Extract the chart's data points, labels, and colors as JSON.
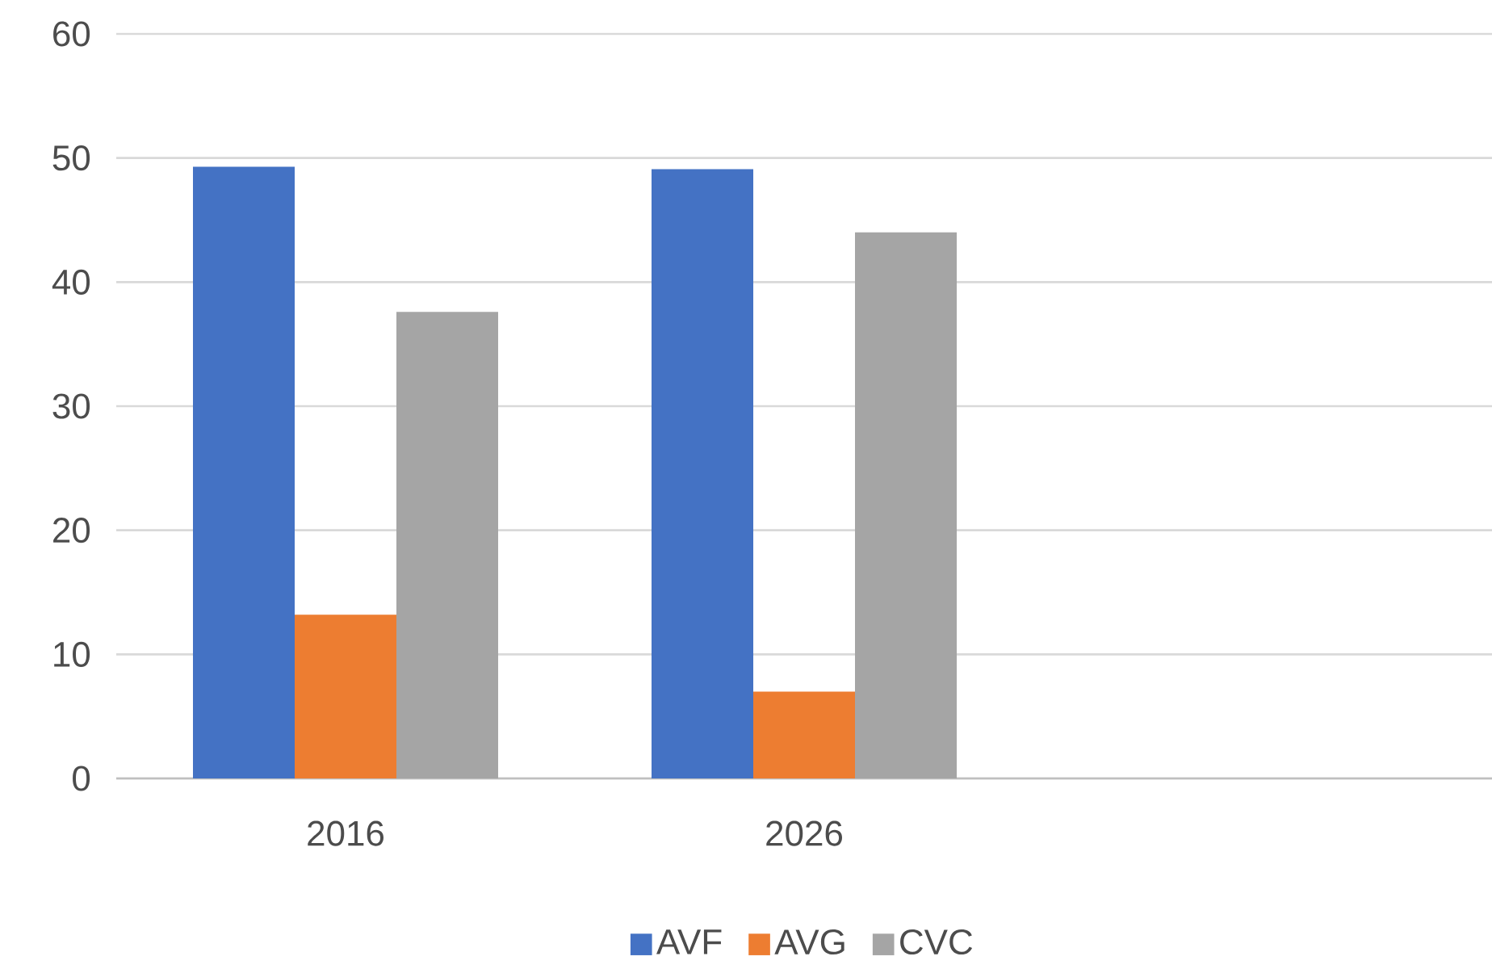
{
  "chart_data": {
    "type": "bar",
    "categories": [
      "2016",
      "2026",
      null
    ],
    "series": [
      {
        "name": "AVF",
        "color": "#4472c4",
        "values": [
          49.3,
          49.1,
          null
        ]
      },
      {
        "name": "AVG",
        "color": "#ed7d31",
        "values": [
          13.2,
          7.0,
          null
        ]
      },
      {
        "name": "CVC",
        "color": "#a5a5a5",
        "values": [
          37.6,
          44.0,
          null
        ]
      }
    ],
    "ylim": [
      0,
      60
    ],
    "yticks": [
      0,
      10,
      20,
      30,
      40,
      50,
      60
    ],
    "grid": "y",
    "legend": "bottom"
  }
}
